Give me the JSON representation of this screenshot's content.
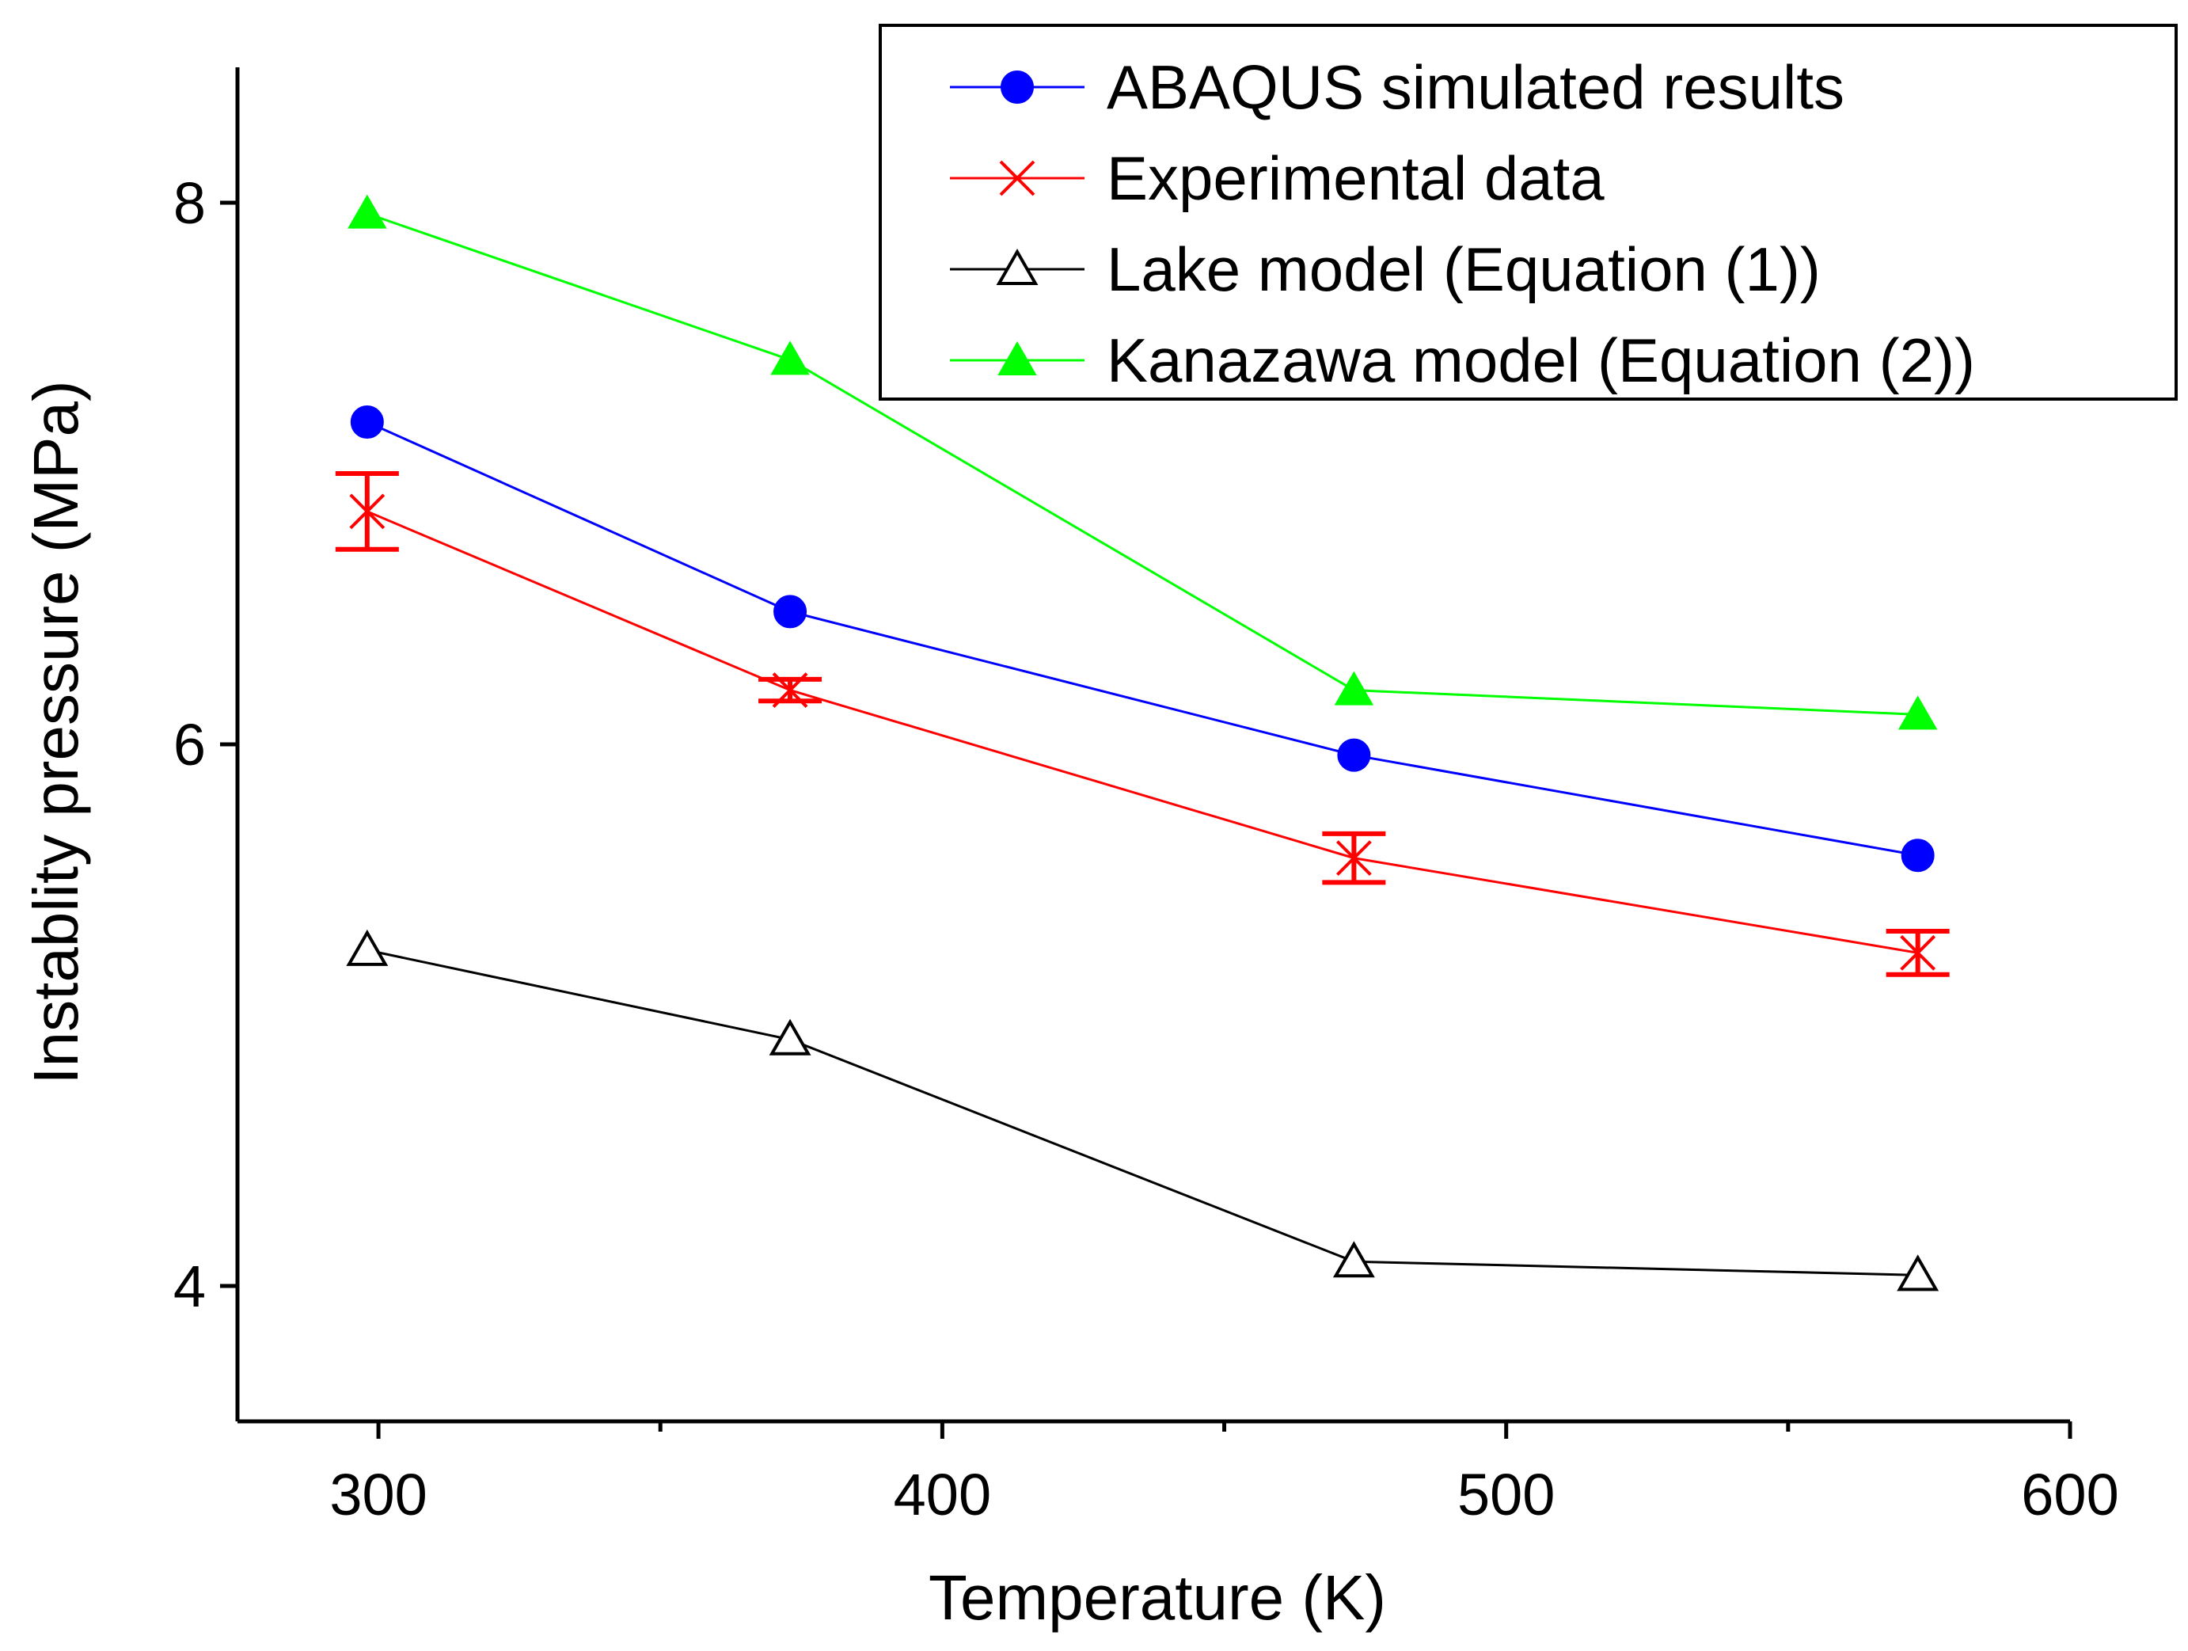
{
  "chart_data": {
    "type": "line",
    "title": "",
    "xlabel": "Temperature (K)",
    "ylabel": "Instablity pressure (MPa)",
    "xlim": [
      275,
      600
    ],
    "ylim": [
      3.5,
      8.5
    ],
    "xticks": [
      300,
      400,
      500,
      600
    ],
    "yticks": [
      4,
      6,
      8
    ],
    "x_minor_ticks": [
      350,
      450,
      550
    ],
    "legend_position": "top-right",
    "grid": false,
    "series": [
      {
        "name": "ABAQUS simulated results",
        "color": "#0000ff",
        "marker": "filled-circle",
        "x": [
          298,
          373,
          473,
          573
        ],
        "y": [
          7.19,
          6.49,
          5.96,
          5.59
        ]
      },
      {
        "name": "Experimental data",
        "color": "#ff0000",
        "marker": "cross",
        "x": [
          298,
          373,
          473,
          573
        ],
        "y": [
          6.86,
          6.2,
          5.58,
          5.23
        ],
        "error": [
          0.14,
          0.04,
          0.09,
          0.08
        ]
      },
      {
        "name": "Lake model (Equation (1))",
        "color": "#000000",
        "marker": "open-triangle",
        "x": [
          298,
          373,
          473,
          573
        ],
        "y": [
          5.24,
          4.91,
          4.09,
          4.04
        ]
      },
      {
        "name": "Kanazawa model (Equation (2))",
        "color": "#00ff00",
        "marker": "filled-triangle",
        "x": [
          298,
          373,
          473,
          573
        ],
        "y": [
          7.96,
          7.42,
          6.2,
          6.11
        ]
      }
    ]
  }
}
